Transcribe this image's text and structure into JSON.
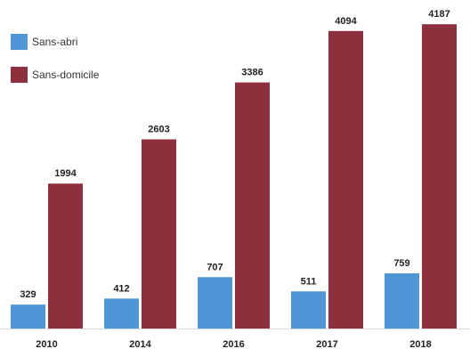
{
  "chart_data": {
    "type": "bar",
    "categories": [
      "2010",
      "2014",
      "2016",
      "2017",
      "2018"
    ],
    "series": [
      {
        "name": "Sans-abri",
        "values": [
          329,
          412,
          707,
          511,
          759
        ],
        "color": "#4f96d6"
      },
      {
        "name": "Sans-domicile",
        "values": [
          1994,
          2603,
          3386,
          4094,
          4187
        ],
        "color": "#8d2f3d"
      }
    ],
    "title": "",
    "xlabel": "",
    "ylabel": "",
    "ylim": [
      0,
      4300
    ],
    "grid": false,
    "legend_position": "top-left"
  }
}
